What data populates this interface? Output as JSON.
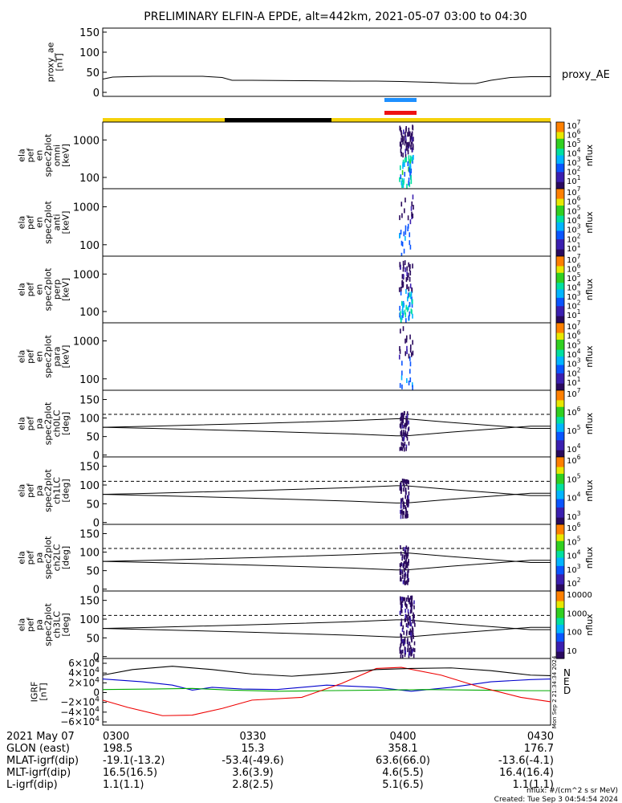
{
  "title": "PRELIMINARY ELFIN-A EPDE, alt=442km, 2021-05-07 03:00 to 04:30",
  "chart_data": {
    "type": "line",
    "time_range": [
      "03:00",
      "04:30"
    ],
    "panels": [
      {
        "id": "proxy_ae",
        "ylabel": [
          "proxy_ae",
          "[nT]"
        ],
        "yticks": [
          "150",
          "100",
          "50",
          "0"
        ],
        "ylim": [
          -10,
          160
        ],
        "legend": "proxy_AE",
        "series": [
          {
            "x": [
              0,
              2,
              5,
              10,
              15,
              20,
              24,
              26,
              30,
              40,
              50,
              55,
              60,
              66,
              72,
              75,
              78,
              82,
              86,
              90
            ],
            "y": [
              33,
              38,
              39,
              40,
              40,
              40,
              37,
              30,
              30,
              29,
              28,
              28,
              27,
              25,
              22,
              22,
              30,
              37,
              39,
              39
            ]
          }
        ]
      },
      {
        "id": "spec_omni",
        "kind": "energy_spectrogram",
        "ylabel": [
          "ela",
          "pef",
          "en",
          "spec2plot",
          "omni",
          "[keV]"
        ],
        "yticks": [
          "1000",
          "100"
        ],
        "cbar": {
          "label": "nflux",
          "ticks": [
            "10^7",
            "10^6",
            "10^5",
            "10^4",
            "10^3",
            "10^2",
            "10^1"
          ],
          "range_exp": [
            1,
            7
          ]
        }
      },
      {
        "id": "spec_anti",
        "kind": "energy_spectrogram",
        "ylabel": [
          "ela",
          "pef",
          "en",
          "spec2plot",
          "anti",
          "[keV]"
        ],
        "yticks": [
          "1000",
          "100"
        ],
        "cbar": {
          "label": "nflux",
          "ticks": [
            "10^7",
            "10^6",
            "10^5",
            "10^4",
            "10^3",
            "10^2",
            "10^1"
          ],
          "range_exp": [
            1,
            7
          ]
        }
      },
      {
        "id": "spec_perp",
        "kind": "energy_spectrogram",
        "ylabel": [
          "ela",
          "pef",
          "en",
          "spec2plot",
          "perp",
          "[keV]"
        ],
        "yticks": [
          "1000",
          "100"
        ],
        "cbar": {
          "label": "nflux",
          "ticks": [
            "10^7",
            "10^6",
            "10^5",
            "10^4",
            "10^3",
            "10^2",
            "10^1"
          ],
          "range_exp": [
            1,
            7
          ]
        }
      },
      {
        "id": "spec_para",
        "kind": "energy_spectrogram",
        "ylabel": [
          "ela",
          "pef",
          "en",
          "spec2plot",
          "para",
          "[keV]"
        ],
        "yticks": [
          "1000",
          "100"
        ],
        "cbar": {
          "label": "nflux",
          "ticks": [
            "10^7",
            "10^6",
            "10^5",
            "10^4",
            "10^3",
            "10^2",
            "10^1"
          ],
          "range_exp": [
            1,
            7
          ]
        }
      },
      {
        "id": "pa_ch0",
        "kind": "pitch_angle",
        "ylabel": [
          "ela",
          "pef",
          "pa",
          "spec2plot",
          "ch0LC",
          "[deg]"
        ],
        "yticks": [
          "150",
          "100",
          "50",
          "0"
        ],
        "cbar": {
          "label": "nflux",
          "ticks": [
            "10^7",
            "10^6",
            "10^5",
            "10^4"
          ],
          "range_exp": [
            3.5,
            7
          ]
        }
      },
      {
        "id": "pa_ch1",
        "kind": "pitch_angle",
        "ylabel": [
          "ela",
          "pef",
          "pa",
          "spec2plot",
          "ch1LC",
          "[deg]"
        ],
        "yticks": [
          "150",
          "100",
          "50",
          "0"
        ],
        "cbar": {
          "label": "nflux",
          "ticks": [
            "10^6",
            "10^5",
            "10^4",
            "10^3"
          ],
          "range_exp": [
            3,
            6.5
          ]
        }
      },
      {
        "id": "pa_ch2",
        "kind": "pitch_angle",
        "ylabel": [
          "ela",
          "pef",
          "pa",
          "spec2plot",
          "ch2LC",
          "[deg]"
        ],
        "yticks": [
          "150",
          "100",
          "50",
          "0"
        ],
        "cbar": {
          "label": "nflux",
          "ticks": [
            "10^6",
            "10^5",
            "10^4",
            "10^3",
            "10^2"
          ],
          "range_exp": [
            2,
            6.5
          ]
        }
      },
      {
        "id": "pa_ch3",
        "kind": "pitch_angle",
        "ylabel": [
          "ela",
          "pef",
          "pa",
          "spec2plot",
          "ch3LC",
          "[deg]"
        ],
        "yticks": [
          "150",
          "100",
          "50",
          "0"
        ],
        "cbar": {
          "label": "nflux",
          "ticks": [
            "10000",
            "1000",
            "100",
            "10"
          ],
          "range_exp": [
            1,
            4
          ]
        }
      },
      {
        "id": "igrf",
        "kind": "field",
        "ylabel": [
          "IGRF",
          "[nT]"
        ],
        "yticks": [
          "6×10^4",
          "4×10^4",
          "2×10^4",
          "0",
          "−2×10^4",
          "−4×10^4",
          "−6×10^4"
        ],
        "ylim": [
          -60000,
          60000
        ],
        "legend": [
          "N",
          "E",
          "D"
        ],
        "series": [
          {
            "name": "N",
            "color": "#0000cc",
            "x": [
              0,
              8,
              14,
              18,
              22,
              28,
              35,
              45,
              55,
              62,
              70,
              78,
              86,
              90
            ],
            "y": [
              23000,
              18000,
              12000,
              3000,
              8000,
              5000,
              4000,
              12000,
              8000,
              1000,
              8000,
              18000,
              22000,
              23000
            ]
          },
          {
            "name": "E",
            "color": "#00aa00",
            "x": [
              0,
              10,
              18,
              26,
              35,
              45,
              55,
              65,
              75,
              86,
              90
            ],
            "y": [
              4000,
              5000,
              6000,
              3000,
              1000,
              2000,
              3000,
              4000,
              3000,
              2000,
              2000
            ]
          },
          {
            "name": "D",
            "color": "#ee0000",
            "x": [
              0,
              5,
              12,
              18,
              24,
              30,
              40,
              48,
              55,
              60,
              68,
              76,
              84,
              90
            ],
            "y": [
              -15000,
              -28000,
              -43000,
              -42000,
              -30000,
              -15000,
              -10000,
              15000,
              42000,
              44000,
              30000,
              8000,
              -10000,
              -18000
            ]
          },
          {
            "name": "",
            "color": "#000000",
            "x": [
              0,
              6,
              14,
              22,
              30,
              38,
              46,
              55,
              62,
              70,
              78,
              86,
              90
            ],
            "y": [
              30000,
              40000,
              46000,
              40000,
              32000,
              28000,
              33000,
              40000,
              42000,
              43000,
              38000,
              30000,
              29000
            ]
          }
        ],
        "side_text": "Mon Sep 2 21:34:34 2024"
      }
    ],
    "x_table": {
      "rows": [
        {
          "label": "2021 May 07",
          "values": [
            "0300",
            "0330",
            "0400",
            "0430"
          ]
        },
        {
          "label": "GLON (east)",
          "values": [
            "198.5",
            "15.3",
            "358.1",
            "176.7"
          ]
        },
        {
          "label": "MLAT-igrf(dip)",
          "values": [
            "-19.1(-13.2)",
            "-53.4(-49.6)",
            "63.6(66.0)",
            "-13.6(-4.1)"
          ]
        },
        {
          "label": "MLT-igrf(dip)",
          "values": [
            "16.5(16.5)",
            "3.6(3.9)",
            "4.6(5.5)",
            "16.4(16.4)"
          ]
        },
        {
          "label": "L-igrf(dip)",
          "values": [
            "1.1(1.1)",
            "2.8(2.5)",
            "5.1(6.5)",
            "1.1(1.1)"
          ]
        }
      ]
    },
    "footer": [
      "nflux: #/(cm^2 s sr MeV)",
      "Created: Tue Sep  3 04:54:54 2024"
    ]
  }
}
